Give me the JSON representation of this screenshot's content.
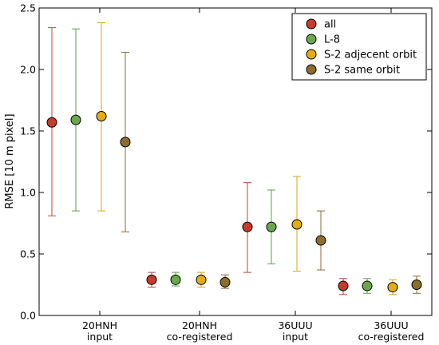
{
  "chart_data": {
    "type": "scatter",
    "ylabel": "RMSE [10 m pixel]",
    "ylim": [
      0.0,
      2.5
    ],
    "yticks": [
      "0.0",
      "0.5",
      "1.0",
      "1.5",
      "2.0",
      "2.5"
    ],
    "categories": [
      {
        "line1": "20HNH",
        "line2": "input"
      },
      {
        "line1": "20HNH",
        "line2": "co-registered"
      },
      {
        "line1": "36UUU",
        "line2": "input"
      },
      {
        "line1": "36UUU",
        "line2": "co-registered"
      }
    ],
    "legend_position": "top-right",
    "grid": false,
    "series": [
      {
        "name": "all",
        "color": "#c83a2a",
        "errcolor": "#b8453a",
        "values": [
          1.57,
          0.29,
          0.72,
          0.24
        ],
        "low": [
          0.81,
          0.23,
          0.35,
          0.17
        ],
        "high": [
          2.34,
          0.35,
          1.08,
          0.3
        ]
      },
      {
        "name": "L-8",
        "color": "#6aa84f",
        "errcolor": "#5f9e46",
        "values": [
          1.59,
          0.29,
          0.72,
          0.24
        ],
        "low": [
          0.85,
          0.24,
          0.42,
          0.18
        ],
        "high": [
          2.33,
          0.35,
          1.02,
          0.3
        ]
      },
      {
        "name": "S-2 adjecent orbit",
        "color": "#e3ad12",
        "errcolor": "#d9a417",
        "values": [
          1.62,
          0.29,
          0.74,
          0.23
        ],
        "low": [
          0.85,
          0.23,
          0.36,
          0.17
        ],
        "high": [
          2.38,
          0.35,
          1.13,
          0.29
        ]
      },
      {
        "name": "S-2 same orbit",
        "color": "#8c6d2c",
        "errcolor": "#8a6b2e",
        "values": [
          1.41,
          0.27,
          0.61,
          0.25
        ],
        "low": [
          0.68,
          0.22,
          0.37,
          0.18
        ],
        "high": [
          2.14,
          0.33,
          0.85,
          0.32
        ]
      }
    ]
  }
}
